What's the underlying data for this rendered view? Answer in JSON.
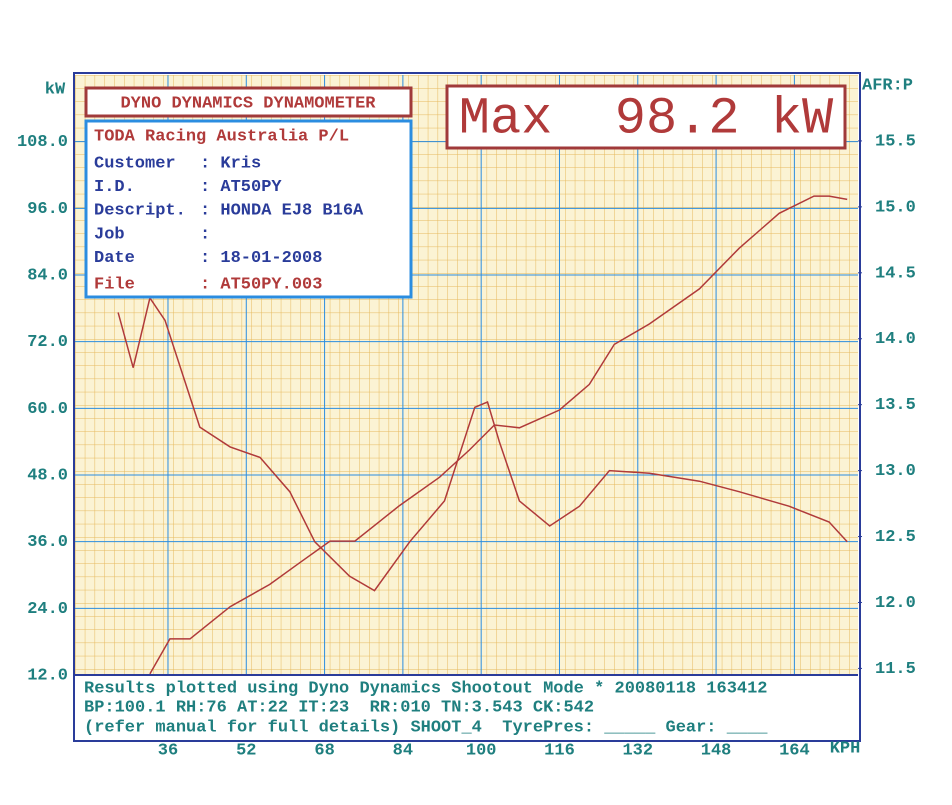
{
  "chart_data": {
    "type": "line",
    "header": "DYNO DYNAMICS DYNAMOMETER",
    "max_label": "Max  98.2 kW",
    "info": {
      "title": "TODA Racing Australia P/L",
      "rows": [
        [
          "Customer",
          ": Kris"
        ],
        [
          "I.D.",
          ": AT50PY"
        ],
        [
          "Descript.",
          ": HONDA EJ8 B16A"
        ],
        [
          "Job",
          ":"
        ],
        [
          "Date",
          ": 18-01-2008"
        ],
        [
          "File",
          ": AT50PY.003"
        ]
      ]
    },
    "footer": [
      "Results plotted using Dyno Dynamics Shootout Mode * 20080118 163412",
      "BP:100.1 RH:76 AT:22 IT:23  RR:010 TN:3.543 CK:542",
      "(refer manual for full details) SHOOT_4  TyrePres: _____ Gear: ____"
    ],
    "y_label": "kW",
    "y2_label": "AFR:P",
    "x_label": "KPH",
    "xlim": [
      17,
      177
    ],
    "xticks": [
      36,
      52,
      68,
      84,
      100,
      116,
      132,
      148,
      164
    ],
    "ylim": [
      12,
      120
    ],
    "yticks": [
      {
        "value": 12,
        "label": "12.0"
      },
      {
        "value": 24,
        "label": "24.0"
      },
      {
        "value": 36,
        "label": "36.0"
      },
      {
        "value": 48,
        "label": "48.0"
      },
      {
        "value": 60,
        "label": "60.0"
      },
      {
        "value": 72,
        "label": "72.0"
      },
      {
        "value": 84,
        "label": "84.0"
      },
      {
        "value": 96,
        "label": "96.0"
      },
      {
        "value": 108,
        "label": "108.0"
      }
    ],
    "y2lim": [
      11.45,
      16.0
    ],
    "y2ticks": [
      11.5,
      {
        "value": 12,
        "label": "12.0"
      },
      12.5,
      {
        "value": 13,
        "label": "13.0"
      },
      13.5,
      {
        "value": 14,
        "label": "14.0"
      },
      14.5,
      {
        "value": 15,
        "label": "15.0"
      },
      15.5
    ],
    "grid": true,
    "series": [
      {
        "color": "#b03a3a",
        "x": [
          32.3,
          36.4,
          40.5,
          48.7,
          56.8,
          62.9,
          69.1,
          74.2,
          83.3,
          91.5,
          97.6,
          102.7,
          107.8,
          116,
          122.1,
          127.2,
          134.4,
          144.6,
          152.7,
          160.9,
          168,
          171.1,
          174.8
        ],
        "values": [
          12.2,
          18.5,
          18.5,
          24.3,
          28.3,
          32.2,
          36.1,
          36.1,
          42.5,
          47.6,
          52.5,
          57.0,
          56.5,
          59.7,
          64.3,
          71.5,
          75.2,
          81.5,
          88.8,
          95.1,
          98.2,
          98.2,
          97.6
        ]
      },
      {
        "color": "#b03a3a",
        "axis": "y2",
        "x": [
          25.8,
          28.9,
          32.3,
          35.4,
          42.5,
          48.7,
          54.8,
          60.9,
          66,
          73.1,
          78.2,
          85.4,
          92.5,
          98.7,
          101.3,
          103.7,
          107.8,
          114,
          120.1,
          126.2,
          134.4,
          144.6,
          152.7,
          162.9,
          171.1,
          174.8
        ],
        "values": [
          14.2,
          13.78,
          14.31,
          14.14,
          13.33,
          13.18,
          13.1,
          12.84,
          12.46,
          12.2,
          12.09,
          12.46,
          12.77,
          13.48,
          13.52,
          13.22,
          12.77,
          12.58,
          12.73,
          13.0,
          12.98,
          12.92,
          12.84,
          12.73,
          12.61,
          12.46
        ]
      }
    ]
  }
}
